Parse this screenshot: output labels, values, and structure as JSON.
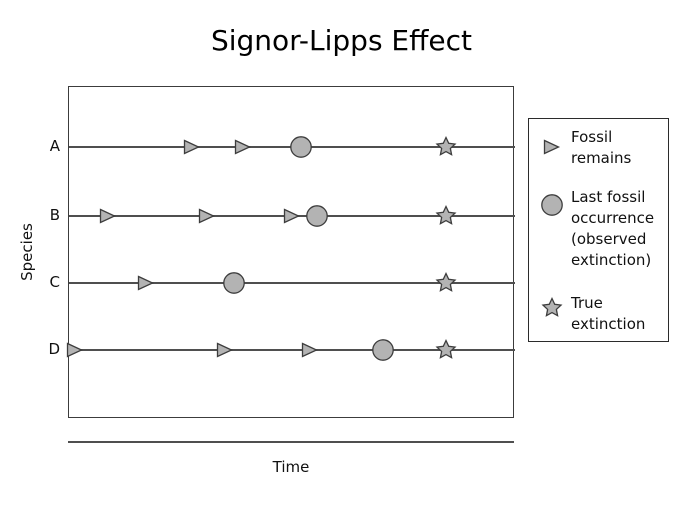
{
  "title": "Signor-Lipps Effect",
  "axes": {
    "x_label": "Time",
    "y_label": "Species"
  },
  "colors": {
    "marker_fill": "#b3b3b3",
    "marker_stroke": "#3d3d3d",
    "line": "#4f4f4f",
    "plot_border": "#3c3c3c",
    "legend_border": "#2b2b2b",
    "text": "#111111",
    "background": "#ffffff"
  },
  "legend": {
    "items": [
      {
        "marker": "triangle",
        "icon_name": "fossil-remains-triangle-icon",
        "label": "Fossil\nremains"
      },
      {
        "marker": "circle",
        "icon_name": "last-fossil-circle-icon",
        "label": "Last fossil\noccurrence\n(observed\nextinction)"
      },
      {
        "marker": "star",
        "icon_name": "true-extinction-star-icon",
        "label": "True\nextinction"
      }
    ]
  },
  "chart_data": {
    "type": "scatter",
    "title": "Signor-Lipps Effect",
    "xlabel": "Time",
    "ylabel": "Species",
    "x_axis": {
      "range": [
        0,
        100
      ],
      "ticks_visible": false,
      "unit": "relative time (unlabeled)"
    },
    "legend_position": "right",
    "grid": false,
    "rows": [
      {
        "species": "A",
        "fossil_remains_x": [
          27.5,
          39.0
        ],
        "last_fossil_x": 52.0,
        "true_extinction_x": 84.5
      },
      {
        "species": "B",
        "fossil_remains_x": [
          8.7,
          31.0,
          50.0
        ],
        "last_fossil_x": 55.5,
        "true_extinction_x": 84.5
      },
      {
        "species": "C",
        "fossil_remains_x": [
          17.3
        ],
        "last_fossil_x": 37.0,
        "true_extinction_x": 84.5
      },
      {
        "species": "D",
        "fossil_remains_x": [
          1.3,
          35.0,
          54.0
        ],
        "last_fossil_x": 70.5,
        "true_extinction_x": 84.5
      }
    ]
  }
}
